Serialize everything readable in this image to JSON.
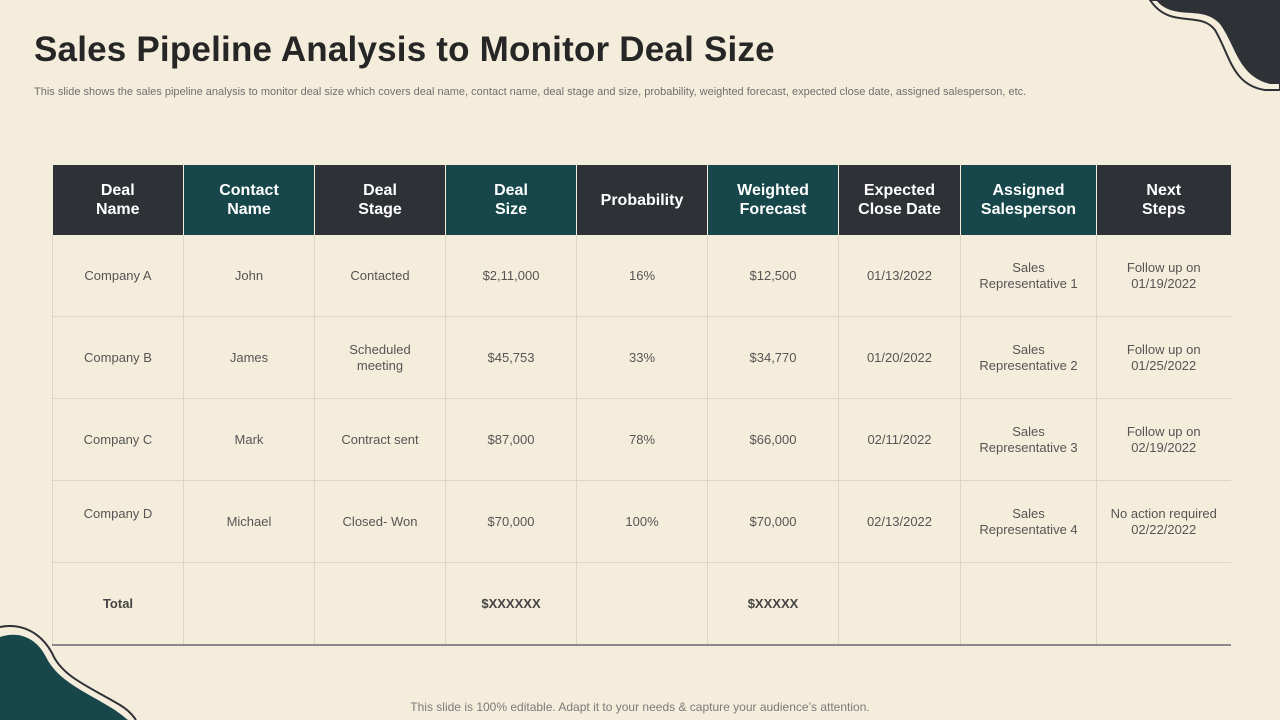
{
  "slide": {
    "title": "Sales Pipeline Analysis to Monitor Deal Size",
    "subtitle": "This slide shows the sales pipeline analysis to monitor deal size which covers deal name, contact name, deal stage and size, probability, weighted forecast, expected close date, assigned salesperson, etc.",
    "footer": "This slide is 100% editable. Adapt it to your needs & capture your audience’s attention."
  },
  "colors": {
    "background": "#f5eddc",
    "header_dark": "#2e3136",
    "header_teal": "#17474a"
  },
  "table": {
    "headers": [
      "Deal\nName",
      "Contact\nName",
      "Deal\nStage",
      "Deal\nSize",
      "Probability",
      "Weighted\nForecast",
      "Expected\nClose Date",
      "Assigned\nSalesperson",
      "Next\nSteps"
    ],
    "rows": [
      [
        "Company A",
        "John",
        "Contacted",
        "$2,11,000",
        "16%",
        "$12,500",
        "01/13/2022",
        "Sales\nRepresentative  1",
        "Follow up on\n01/19/2022"
      ],
      [
        "Company B",
        "James",
        "Scheduled\nmeeting",
        "$45,753",
        "33%",
        "$34,770",
        "01/20/2022",
        "Sales\nRepresentative  2",
        "Follow up on\n01/25/2022"
      ],
      [
        "Company C",
        "Mark",
        "Contract  sent",
        "$87,000",
        "78%",
        "$66,000",
        "02/11/2022",
        "Sales\nRepresentative  3",
        "Follow up on\n02/19/2022"
      ],
      [
        "Company D",
        "Michael",
        "Closed- Won",
        "$70,000",
        "100%",
        "$70,000",
        "02/13/2022",
        "Sales\nRepresentative  4",
        "No action required\n02/22/2022"
      ]
    ],
    "total": [
      "Total",
      "",
      "",
      "$XXXXXX",
      "",
      "$XXXXX",
      "",
      "",
      ""
    ]
  }
}
